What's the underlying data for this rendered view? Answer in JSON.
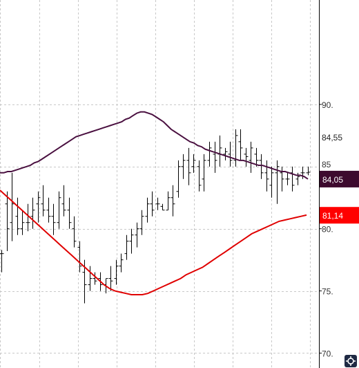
{
  "chart_data": {
    "type": "ohlc",
    "y_axis": {
      "ticks": [
        70,
        75,
        80,
        90
      ],
      "tick_labels": [
        "70.",
        "75.",
        "80.",
        "90."
      ],
      "partial_label": "85",
      "range": [
        68.8,
        98.4
      ]
    },
    "grid": true,
    "x_count": 60,
    "last_price": "84,55",
    "price_tags": [
      {
        "label": "84,05",
        "value": 84.05,
        "color": "#3d0a2e"
      },
      {
        "label": "81,14",
        "value": 81.14,
        "color": "#ff0000"
      }
    ],
    "moving_averages": [
      {
        "color": "#4a1040",
        "values": [
          84.5,
          84.5,
          84.6,
          84.6,
          84.7,
          84.8,
          84.9,
          85.0,
          85.1,
          85.3,
          85.4,
          85.6,
          85.8,
          86.0,
          86.2,
          86.4,
          86.6,
          86.8,
          87.0,
          87.2,
          87.4,
          87.5,
          87.6,
          87.7,
          87.8,
          87.9,
          88.0,
          88.1,
          88.2,
          88.3,
          88.4,
          88.5,
          88.6,
          88.8,
          88.9,
          89.1,
          89.3,
          89.4,
          89.4,
          89.3,
          89.2,
          89.0,
          88.8,
          88.6,
          88.3,
          88.0,
          87.8,
          87.6,
          87.4,
          87.2,
          87.0,
          86.9,
          86.7,
          86.6,
          86.4,
          86.3,
          86.2,
          86.1,
          86.0,
          85.9,
          85.8,
          85.7,
          85.6,
          85.5,
          85.5,
          85.4,
          85.3,
          85.2,
          85.1,
          85.1,
          85.0,
          84.9,
          84.8,
          84.7,
          84.6,
          84.6,
          84.5,
          84.4,
          84.3,
          84.3,
          84.2,
          84.0
        ]
      },
      {
        "color": "#e00000",
        "values": [
          83.1,
          82.7,
          82.3,
          81.9,
          81.5,
          81.1,
          80.7,
          80.3,
          79.9,
          79.5,
          79.1,
          78.7,
          78.3,
          77.9,
          77.5,
          77.1,
          76.7,
          76.3,
          75.9,
          75.5,
          75.2,
          75.0,
          74.9,
          74.8,
          74.7,
          74.7,
          74.7,
          74.8,
          75.0,
          75.2,
          75.4,
          75.6,
          75.8,
          76.0,
          76.3,
          76.5,
          76.7,
          76.9,
          77.2,
          77.5,
          77.8,
          78.1,
          78.4,
          78.7,
          79.0,
          79.3,
          79.6,
          79.8,
          80.0,
          80.2,
          80.4,
          80.6,
          80.7,
          80.8,
          80.9,
          81.0,
          81.1
        ]
      }
    ],
    "bars": [
      [
        76.5,
        78.3,
        78.0,
        78.0
      ],
      [
        78.2,
        83.0,
        82.0,
        80.0
      ],
      [
        79.0,
        84.5,
        80.5,
        82.0
      ],
      [
        79.5,
        82.5,
        81.0,
        80.0
      ],
      [
        79.5,
        81.5,
        80.0,
        80.5
      ],
      [
        79.8,
        82.0,
        80.5,
        80.5
      ],
      [
        80.0,
        82.5,
        81.0,
        81.5
      ],
      [
        80.5,
        83.0,
        82.0,
        82.5
      ],
      [
        81.0,
        83.5,
        82.0,
        81.5
      ],
      [
        80.5,
        82.5,
        81.5,
        81.0
      ],
      [
        79.5,
        82.0,
        81.0,
        80.5
      ],
      [
        80.0,
        83.0,
        80.5,
        82.5
      ],
      [
        81.0,
        83.5,
        82.0,
        81.5
      ],
      [
        80.0,
        82.5,
        81.5,
        80.5
      ],
      [
        78.5,
        81.0,
        80.0,
        79.0
      ],
      [
        76.5,
        79.0,
        78.5,
        77.0
      ],
      [
        74.0,
        77.5,
        76.5,
        75.5
      ],
      [
        75.0,
        77.0,
        75.5,
        76.0
      ],
      [
        75.5,
        76.5,
        76.0,
        75.8
      ],
      [
        75.0,
        76.5,
        76.0,
        75.5
      ],
      [
        74.8,
        76.0,
        75.5,
        76.0
      ],
      [
        75.0,
        77.0,
        76.0,
        75.8
      ],
      [
        75.5,
        77.5,
        76.0,
        77.0
      ],
      [
        76.5,
        78.0,
        77.0,
        77.5
      ],
      [
        77.5,
        79.5,
        78.0,
        79.0
      ],
      [
        78.0,
        80.0,
        79.0,
        79.5
      ],
      [
        78.5,
        80.5,
        79.5,
        80.0
      ],
      [
        79.5,
        81.5,
        80.0,
        81.0
      ],
      [
        80.5,
        82.5,
        81.0,
        82.0
      ],
      [
        81.0,
        83.0,
        82.0,
        81.5
      ],
      [
        81.5,
        82.5,
        82.0,
        82.0
      ],
      [
        81.5,
        82.0,
        81.8,
        81.5
      ],
      [
        81.5,
        83.0,
        81.5,
        82.5
      ],
      [
        81.0,
        83.5,
        82.5,
        82.0
      ],
      [
        82.5,
        85.5,
        83.0,
        85.0
      ],
      [
        84.0,
        86.0,
        85.0,
        85.5
      ],
      [
        83.5,
        86.5,
        85.5,
        84.5
      ],
      [
        84.5,
        86.0,
        85.0,
        85.5
      ],
      [
        83.0,
        85.5,
        85.0,
        83.5
      ],
      [
        83.0,
        86.0,
        84.0,
        85.5
      ],
      [
        85.0,
        87.0,
        85.5,
        86.5
      ],
      [
        84.5,
        87.0,
        86.0,
        85.5
      ],
      [
        85.0,
        87.5,
        86.0,
        86.5
      ],
      [
        85.5,
        86.5,
        86.0,
        86.2
      ],
      [
        85.0,
        87.0,
        86.0,
        85.5
      ],
      [
        85.0,
        88.0,
        85.5,
        87.5
      ],
      [
        85.5,
        88.0,
        87.0,
        86.5
      ],
      [
        85.0,
        86.5,
        86.0,
        85.8
      ],
      [
        84.5,
        87.0,
        85.5,
        86.5
      ],
      [
        85.0,
        86.5,
        86.0,
        85.5
      ],
      [
        84.0,
        86.0,
        85.5,
        84.5
      ],
      [
        83.0,
        85.5,
        84.5,
        84.0
      ],
      [
        82.5,
        85.0,
        83.5,
        84.5
      ],
      [
        82.0,
        85.5,
        84.5,
        85.0
      ],
      [
        83.0,
        85.0,
        84.5,
        84.0
      ],
      [
        83.5,
        84.5,
        84.0,
        84.0
      ],
      [
        83.0,
        85.0,
        84.5,
        83.5
      ],
      [
        83.5,
        84.5,
        84.0,
        84.2
      ],
      [
        84.0,
        85.0,
        84.5,
        84.5
      ],
      [
        84.3,
        85.0,
        84.5,
        84.55
      ]
    ]
  }
}
